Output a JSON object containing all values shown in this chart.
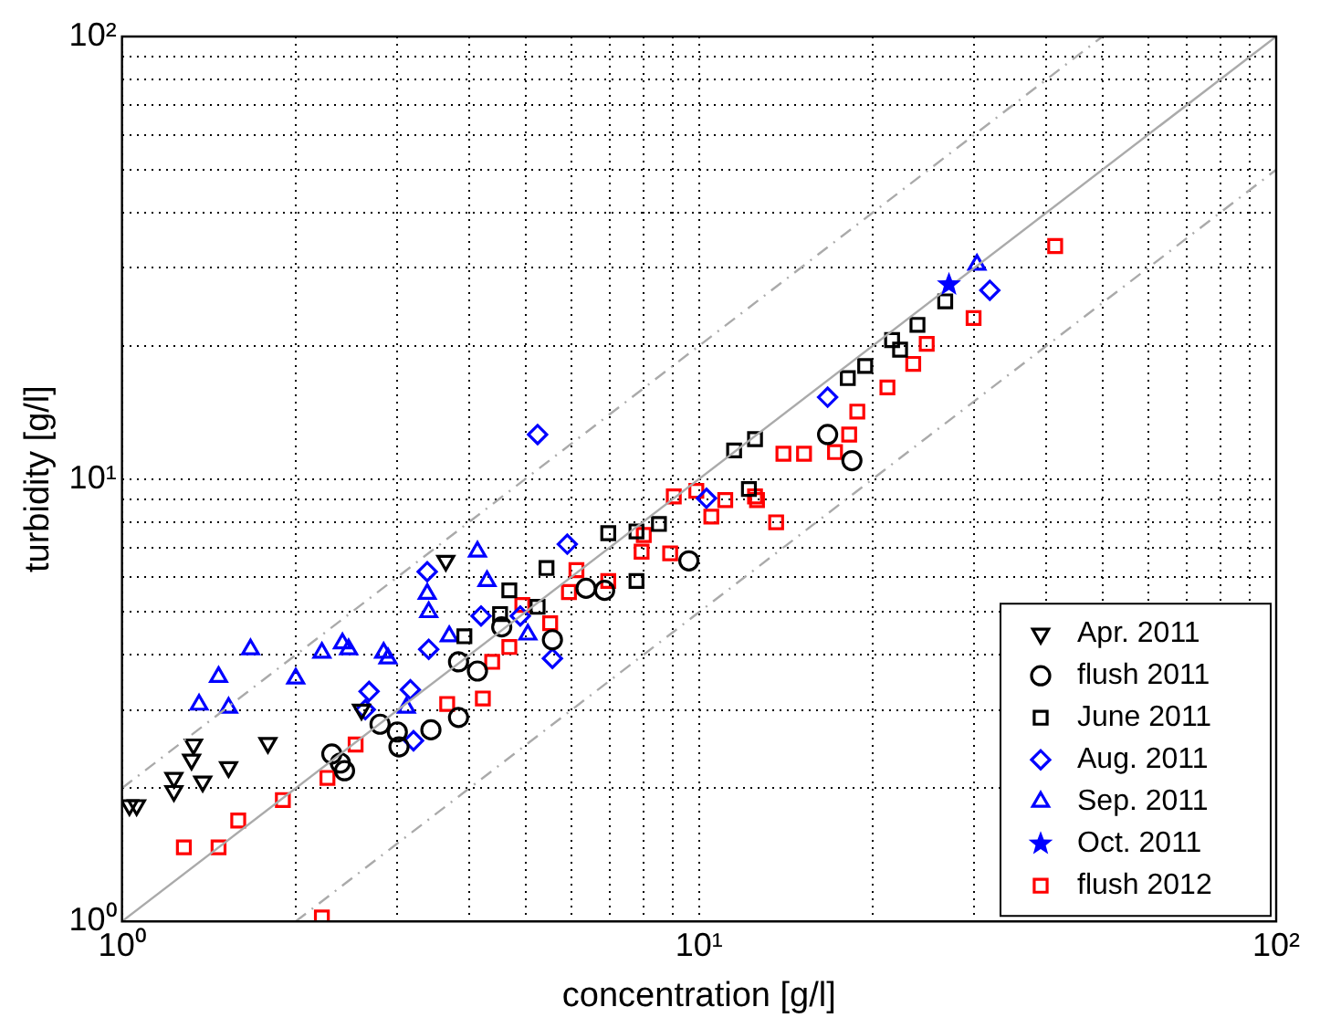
{
  "chart_data": {
    "type": "scatter",
    "xlabel": "concentration [g/l]",
    "ylabel": "turbidity [g/l]",
    "log": "xy",
    "grid": true,
    "legend": "bottom right",
    "xlim": [
      1,
      100
    ],
    "ylim": [
      1,
      100
    ],
    "xticks": [
      {
        "value": 1,
        "label": "10⁰"
      },
      {
        "value": 2,
        "label": null
      },
      {
        "value": 3,
        "label": null
      },
      {
        "value": 4,
        "label": null
      },
      {
        "value": 5,
        "label": null
      },
      {
        "value": 6,
        "label": null
      },
      {
        "value": 7,
        "label": null
      },
      {
        "value": 8,
        "label": null
      },
      {
        "value": 9,
        "label": null
      },
      {
        "value": 10,
        "label": "10¹"
      },
      {
        "value": 20,
        "label": null
      },
      {
        "value": 30,
        "label": null
      },
      {
        "value": 40,
        "label": null
      },
      {
        "value": 50,
        "label": null
      },
      {
        "value": 60,
        "label": null
      },
      {
        "value": 70,
        "label": null
      },
      {
        "value": 80,
        "label": null
      },
      {
        "value": 90,
        "label": null
      },
      {
        "value": 100,
        "label": "10²"
      }
    ],
    "yticks": [
      {
        "value": 1,
        "label": "10⁰"
      },
      {
        "value": 2,
        "label": null
      },
      {
        "value": 3,
        "label": null
      },
      {
        "value": 4,
        "label": null
      },
      {
        "value": 5,
        "label": null
      },
      {
        "value": 6,
        "label": null
      },
      {
        "value": 7,
        "label": null
      },
      {
        "value": 8,
        "label": null
      },
      {
        "value": 9,
        "label": null
      },
      {
        "value": 10,
        "label": "10¹"
      },
      {
        "value": 20,
        "label": null
      },
      {
        "value": 30,
        "label": null
      },
      {
        "value": 40,
        "label": null
      },
      {
        "value": 50,
        "label": null
      },
      {
        "value": 60,
        "label": null
      },
      {
        "value": 70,
        "label": null
      },
      {
        "value": 80,
        "label": null
      },
      {
        "value": 90,
        "label": null
      },
      {
        "value": 100,
        "label": "10²"
      }
    ],
    "series": [
      {
        "type": "line",
        "color": "#aaaaaa",
        "line_style": "solid",
        "marker": "none",
        "x": [
          1,
          100
        ],
        "values": [
          1,
          100
        ]
      },
      {
        "type": "line",
        "color": "#aaaaaa",
        "line_style": "dashed",
        "marker": "none",
        "x": [
          1,
          50
        ],
        "values": [
          2,
          100
        ]
      },
      {
        "type": "line",
        "color": "#aaaaaa",
        "line_style": "dashed",
        "marker": "none",
        "x": [
          2,
          100
        ],
        "values": [
          1,
          50
        ]
      },
      {
        "name": "Apr. 2011",
        "color": "#000000",
        "marker": "triangle-down",
        "x": [
          1.03,
          1.06,
          1.23,
          1.33,
          1.32,
          1.23,
          1.38,
          1.53,
          1.79,
          2.6,
          3.64
        ],
        "values": [
          1.83,
          1.83,
          2.11,
          2.51,
          2.32,
          1.97,
          2.07,
          2.23,
          2.53,
          3.01,
          6.53
        ]
      },
      {
        "name": "flush 2011",
        "color": "#000000",
        "marker": "circle",
        "x": [
          2.31,
          2.39,
          2.43,
          2.8,
          3.0,
          3.02,
          3.43,
          3.83,
          3.83,
          4.13,
          4.55,
          5.57,
          6.37,
          6.86,
          9.6,
          16.7,
          18.4
        ],
        "values": [
          2.39,
          2.28,
          2.19,
          2.79,
          2.68,
          2.48,
          2.71,
          3.86,
          2.89,
          3.68,
          4.63,
          4.33,
          5.66,
          5.6,
          6.53,
          12.6,
          11.0
        ]
      },
      {
        "name": "June 2011",
        "color": "#000000",
        "marker": "square",
        "x": [
          3.92,
          4.52,
          4.69,
          5.44,
          5.25,
          6.96,
          7.79,
          8.52,
          7.79,
          11.5,
          12.5,
          12.2,
          18.1,
          19.4,
          21.6,
          22.3,
          23.9,
          26.7
        ],
        "values": [
          4.41,
          4.95,
          5.6,
          6.29,
          5.14,
          7.54,
          7.61,
          7.91,
          5.88,
          11.6,
          12.3,
          9.49,
          16.9,
          18.0,
          20.6,
          19.6,
          22.3,
          25.2
        ]
      },
      {
        "name": "Aug. 2011",
        "color": "#0000ff",
        "marker": "diamond",
        "x": [
          2.68,
          2.64,
          3.16,
          3.2,
          3.4,
          4.19,
          3.38,
          5.91,
          5.57,
          4.9,
          5.25,
          16.7,
          10.3,
          31.9
        ],
        "values": [
          3.31,
          3.01,
          3.34,
          2.56,
          4.12,
          4.9,
          6.17,
          7.12,
          3.93,
          4.9,
          12.6,
          15.3,
          9.04,
          26.7
        ]
      },
      {
        "name": "Sep. 2011",
        "color": "#0000ff",
        "marker": "triangle",
        "x": [
          1.36,
          1.47,
          1.53,
          1.67,
          2.0,
          2.22,
          2.41,
          2.47,
          2.84,
          2.89,
          3.4,
          3.69,
          3.11,
          3.38,
          4.13,
          4.29,
          5.05,
          30.3
        ],
        "values": [
          3.09,
          3.57,
          3.04,
          4.12,
          3.54,
          4.05,
          4.25,
          4.12,
          4.05,
          3.93,
          5.0,
          4.41,
          3.04,
          5.5,
          6.85,
          5.88,
          4.45,
          30.5
        ]
      },
      {
        "name": "Oct. 2011",
        "color": "#0000ff",
        "marker": "star",
        "x": [
          27.1
        ],
        "values": [
          27.5
        ]
      },
      {
        "name": "flush 2012",
        "color": "#ff0000",
        "marker": "square",
        "x": [
          1.28,
          1.47,
          1.59,
          1.9,
          2.27,
          2.54,
          2.22,
          3.66,
          4.22,
          4.38,
          4.69,
          4.94,
          5.52,
          5.95,
          6.13,
          6.96,
          8.02,
          7.95,
          8.91,
          9.04,
          9.89,
          10.5,
          11.1,
          12.5,
          12.6,
          13.6,
          14.0,
          15.2,
          17.2,
          18.2,
          18.8,
          21.2,
          23.5,
          24.8,
          29.9,
          41.4
        ],
        "values": [
          1.47,
          1.47,
          1.69,
          1.88,
          2.11,
          2.51,
          1.02,
          3.1,
          3.19,
          3.86,
          4.17,
          5.19,
          4.72,
          5.55,
          6.22,
          5.88,
          7.47,
          6.85,
          6.79,
          9.13,
          9.4,
          8.22,
          8.96,
          9.13,
          8.96,
          7.98,
          11.4,
          11.4,
          11.5,
          12.6,
          14.2,
          16.1,
          18.2,
          20.2,
          23.1,
          33.6
        ]
      }
    ]
  }
}
